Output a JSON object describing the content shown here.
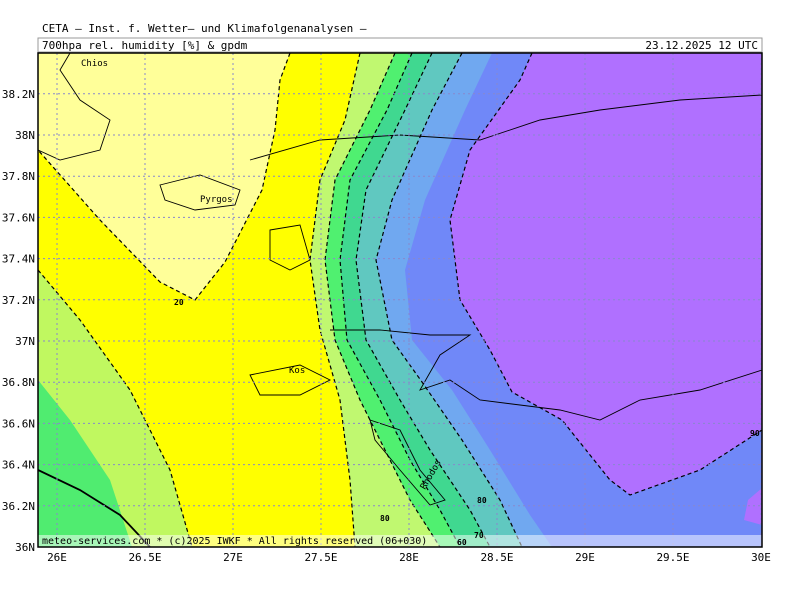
{
  "header": {
    "title": "CETA — Inst. f. Wetter— und Klimafolgenanalysen —",
    "subtitle": "700hpa rel. humidity [%] & gpdm",
    "date": "23.12.2025 12 UTC"
  },
  "map": {
    "lon_ticks": [
      {
        "value": 26,
        "label": "26E"
      },
      {
        "value": 26.5,
        "label": "26.5E"
      },
      {
        "value": 27,
        "label": "27E"
      },
      {
        "value": 27.5,
        "label": "27.5E"
      },
      {
        "value": 28,
        "label": "28E"
      },
      {
        "value": 28.5,
        "label": "28.5E"
      },
      {
        "value": 29,
        "label": "29E"
      },
      {
        "value": 29.5,
        "label": "29.5E"
      },
      {
        "value": 30,
        "label": "30E"
      }
    ],
    "lat_ticks": [
      {
        "value": 36,
        "label": "36N"
      },
      {
        "value": 36.2,
        "label": "36.2N"
      },
      {
        "value": 36.4,
        "label": "36.4N"
      },
      {
        "value": 36.6,
        "label": "36.6N"
      },
      {
        "value": 36.8,
        "label": "36.8N"
      },
      {
        "value": 37,
        "label": "37N"
      },
      {
        "value": 37.2,
        "label": "37.2N"
      },
      {
        "value": 37.4,
        "label": "37.4N"
      },
      {
        "value": 37.6,
        "label": "37.6N"
      },
      {
        "value": 37.8,
        "label": "37.8N"
      },
      {
        "value": 38,
        "label": "38N"
      },
      {
        "value": 38.2,
        "label": "38.2N"
      }
    ],
    "places": [
      "Chios",
      "Pyrgos",
      "Kos",
      "Rhodos"
    ],
    "contour_labels": [
      "20",
      "90",
      "80",
      "80",
      "70",
      "60"
    ]
  },
  "footer": "meteo-services.com * (c)2025 IWKF * All rights reserved (06+030)"
}
